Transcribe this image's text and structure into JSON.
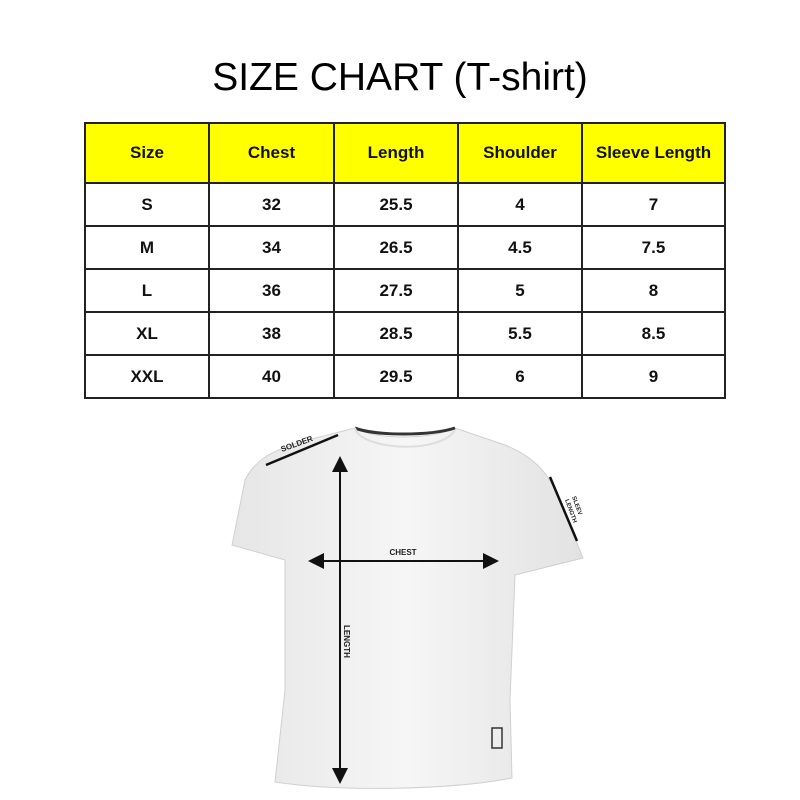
{
  "title": "SIZE CHART (T-shirt)",
  "table": {
    "headers": [
      "Size",
      "Chest",
      "Length",
      "Shoulder",
      "Sleeve Length"
    ],
    "rows": [
      [
        "S",
        "32",
        "25.5",
        "4",
        "7"
      ],
      [
        "M",
        "34",
        "26.5",
        "4.5",
        "7.5"
      ],
      [
        "L",
        "36",
        "27.5",
        "5",
        "8"
      ],
      [
        "XL",
        "38",
        "28.5",
        "5.5",
        "8.5"
      ],
      [
        "XXL",
        "40",
        "29.5",
        "6",
        "9"
      ]
    ],
    "header_color": "#ffff00"
  },
  "diagram": {
    "shoulder_label": "SOLDER",
    "sleeve_label_1": "SLEEV",
    "sleeve_label_2": "LENGTH",
    "chest_label": "CHEST",
    "length_label": "LENGTH"
  }
}
